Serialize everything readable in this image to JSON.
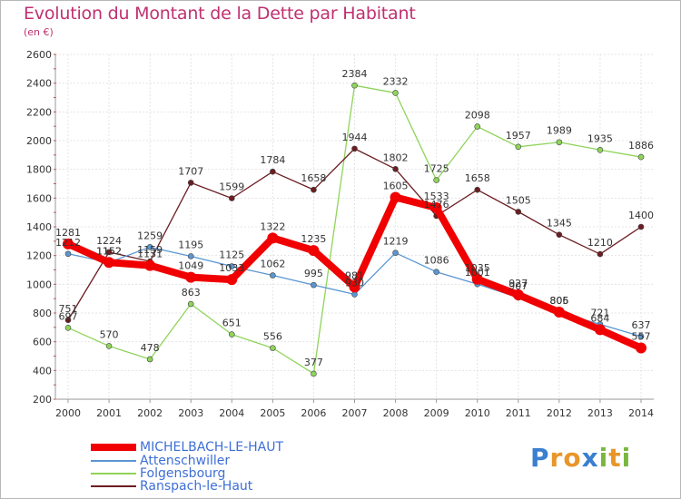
{
  "title": "Evolution du Montant de la Dette par Habitant",
  "subtitle": "(en €)",
  "logo": {
    "letters": [
      "P",
      "r",
      "o",
      "x",
      "i",
      "t",
      "i"
    ],
    "colors": [
      "#3a7fd0",
      "#e8962a",
      "#e8962a",
      "#3a7fd0",
      "#7ab640",
      "#e8962a",
      "#7ab640"
    ]
  },
  "chart_data": {
    "type": "line",
    "title": "Evolution du Montant de la Dette par Habitant",
    "subtitle": "(en €)",
    "x": [
      "2000",
      "2001",
      "2002",
      "2003",
      "2004",
      "2005",
      "2006",
      "2007",
      "2008",
      "2009",
      "2010",
      "2011",
      "2012",
      "2013",
      "2014"
    ],
    "ylim": [
      200,
      2600
    ],
    "yticks": [
      200,
      400,
      600,
      800,
      1000,
      1200,
      1400,
      1600,
      1800,
      2000,
      2200,
      2400,
      2600
    ],
    "grid": true,
    "legend": "bottom-left",
    "series": [
      {
        "name": "Folgensbourg",
        "color": "#8fd45a",
        "width": 1.3,
        "values": [
          697,
          570,
          478,
          863,
          651,
          556,
          377,
          2384,
          2332,
          1725,
          2098,
          1957,
          1989,
          1935,
          1886
        ]
      },
      {
        "name": "Ranspach-le-Haut",
        "color": "#6b1e22",
        "width": 1.3,
        "values": [
          751,
          1224,
          1159,
          1707,
          1599,
          1784,
          1658,
          1944,
          1802,
          1476,
          1658,
          1505,
          1345,
          1210,
          1400
        ]
      },
      {
        "name": "Attenschwiller",
        "color": "#5a96d2",
        "width": 1.3,
        "values": [
          1212,
          1152,
          1259,
          1195,
          1125,
          1062,
          995,
          930,
          1219,
          1086,
          1001,
          907,
          805,
          721,
          637
        ]
      },
      {
        "name": "MICHELBACH-LE-HAUT",
        "color": "#f00000",
        "width": 8,
        "values": [
          1281,
          1152,
          1131,
          1049,
          1033,
          1322,
          1235,
          981,
          1605,
          1533,
          1035,
          927,
          806,
          684,
          557
        ]
      }
    ],
    "value_labels": [
      {
        "series": "Folgensbourg",
        "labels": [
          "697",
          "570",
          "478",
          "863",
          "651",
          "556",
          "377",
          "2384",
          "2332",
          "1725",
          "2098",
          "1957",
          "1989",
          "1935",
          "1886"
        ]
      },
      {
        "series": "Ranspach-le-Haut",
        "labels": [
          "751",
          "1224",
          "1159",
          "1707",
          "1599",
          "1784",
          "1658",
          "1944",
          "1802",
          "1476",
          "1658",
          "1505",
          "1345",
          "1210",
          "1400"
        ]
      },
      {
        "series": "Attenschwiller",
        "labels": [
          "1212",
          "1152",
          "1259",
          "1195",
          "1125",
          "1062",
          "995",
          "930",
          "1219",
          "1086",
          "1001",
          "907",
          "805",
          "721",
          "637"
        ]
      },
      {
        "series": "MICHELBACH-LE-HAUT",
        "labels": [
          "1281",
          "1152",
          "1131",
          "1049",
          "1033",
          "1322",
          "1235",
          "981",
          "1605",
          "1533",
          "1035",
          "927",
          "806",
          "684",
          "557"
        ]
      }
    ]
  },
  "legend": {
    "items": [
      {
        "label": "MICHELBACH-LE-HAUT",
        "color": "#f00000",
        "thickness": 8
      },
      {
        "label": "Attenschwiller",
        "color": "#5a96d2",
        "thickness": 2
      },
      {
        "label": "Folgensbourg",
        "color": "#8fd45a",
        "thickness": 2
      },
      {
        "label": "Ranspach-le-Haut",
        "color": "#6b1e22",
        "thickness": 2
      }
    ]
  }
}
